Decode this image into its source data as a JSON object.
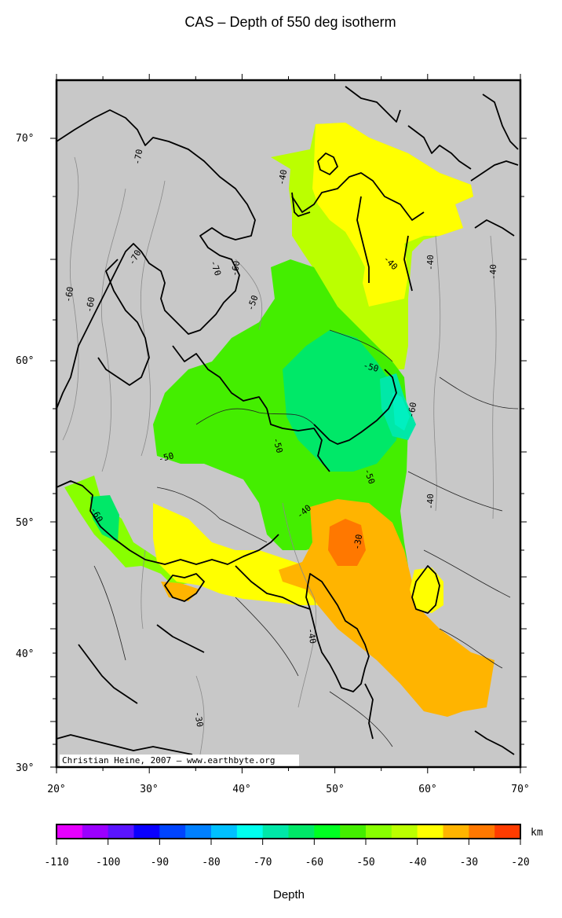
{
  "title": "CAS – Depth of 550 deg isotherm",
  "lat_labels": [
    "70°",
    "60°",
    "50°",
    "40°",
    "30°"
  ],
  "lon_labels": [
    "20°",
    "30°",
    "40°",
    "50°",
    "60°",
    "70°"
  ],
  "contour_labels": [
    "-40",
    "-40",
    "-40",
    "-40",
    "-50",
    "-50",
    "-50",
    "-50",
    "-50",
    "-60",
    "-60",
    "-60",
    "-60",
    "-60",
    "-70",
    "-70",
    "-70",
    "-30",
    "-30",
    "-40",
    "-40",
    "-40"
  ],
  "credit": "Christian Heine, 2007 – www.earthbyte.org",
  "colorbar": {
    "unit": "km",
    "ticks": [
      "-110",
      "-100",
      "-90",
      "-80",
      "-70",
      "-60",
      "-50",
      "-40",
      "-30",
      "-20"
    ],
    "colors": [
      "#e600ff",
      "#9b00ff",
      "#5a14ff",
      "#0a00ff",
      "#0044ff",
      "#0080ff",
      "#00c0ff",
      "#00ffee",
      "#00e8a8",
      "#00e868",
      "#00ff22",
      "#44ee00",
      "#88ff00",
      "#bbff00",
      "#ffff00",
      "#ffb400",
      "#ff7800",
      "#ff3c00"
    ],
    "label": "Depth"
  },
  "colors": {
    "land_bg": "#c8c8c8",
    "frame": "#000000",
    "coast": "#000000"
  }
}
